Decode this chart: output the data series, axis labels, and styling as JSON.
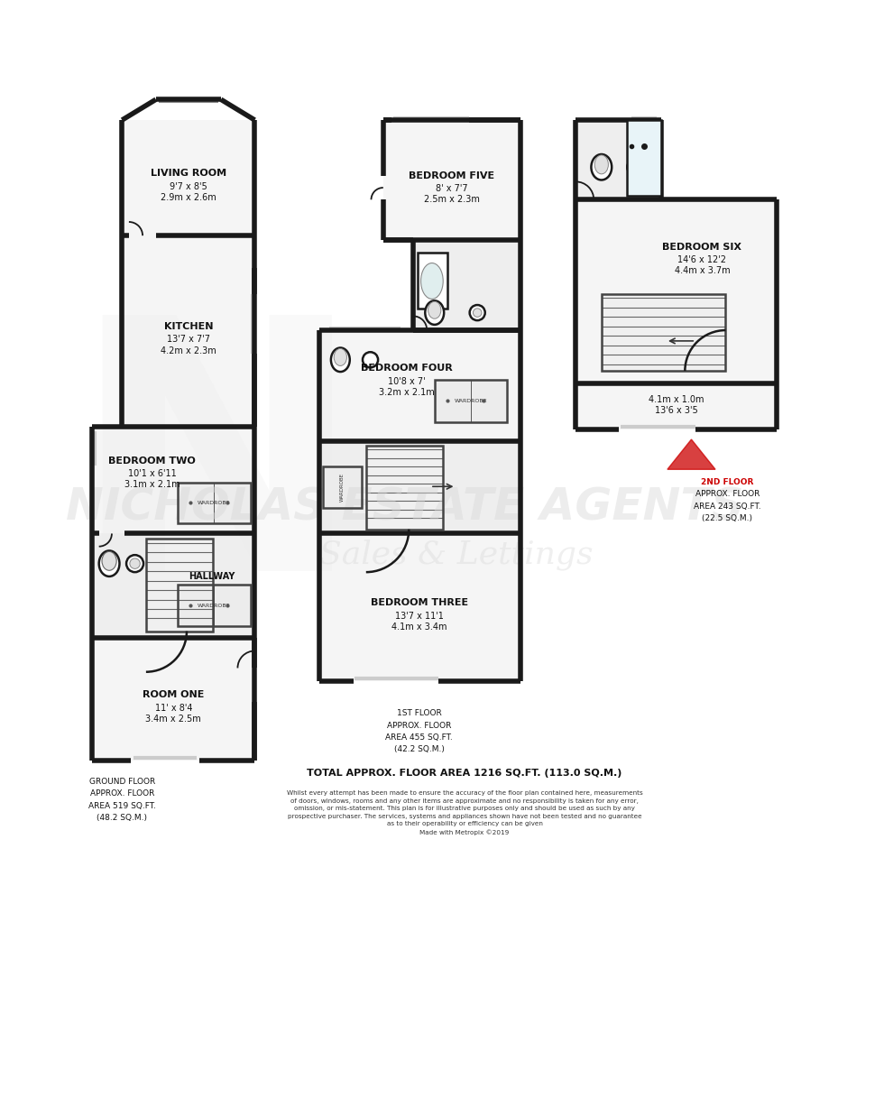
{
  "bg_color": "#ffffff",
  "wall_color": "#1a1a1a",
  "wall_lw": 4.0,
  "thin_lw": 1.0,
  "med_lw": 1.8,
  "rooms": {
    "living_room": {
      "label": "LIVING ROOM",
      "dim1": "9'7 x 8'5",
      "dim2": "2.9m x 2.6m"
    },
    "kitchen": {
      "label": "KITCHEN",
      "dim1": "13'7 x 7'7",
      "dim2": "4.2m x 2.3m"
    },
    "bedroom_two": {
      "label": "BEDROOM TWO",
      "dim1": "10'1 x 6'11",
      "dim2": "3.1m x 2.1m"
    },
    "hallway": {
      "label": "HALLWAY"
    },
    "room_one": {
      "label": "ROOM ONE",
      "dim1": "11' x 8'4",
      "dim2": "3.4m x 2.5m"
    },
    "bedroom_five": {
      "label": "BEDROOM FIVE",
      "dim1": "8' x 7'7",
      "dim2": "2.5m x 2.3m"
    },
    "bedroom_four": {
      "label": "BEDROOM FOUR",
      "dim1": "10'8 x 7'",
      "dim2": "3.2m x 2.1m"
    },
    "bedroom_three": {
      "label": "BEDROOM THREE",
      "dim1": "13'7 x 11'1",
      "dim2": "4.1m x 3.4m"
    },
    "bedroom_six": {
      "label": "BEDROOM SIX",
      "dim1": "14'6 x 12'2",
      "dim2": "4.4m x 3.7m"
    },
    "room_small": {
      "dim1": "13'6 x 3'5",
      "dim2": "4.1m x 1.0m"
    }
  },
  "floor_labels": {
    "ground": [
      "GROUND FLOOR",
      "APPROX. FLOOR",
      "AREA 519 SQ.FT.",
      "(48.2 SQ.M.)"
    ],
    "first": [
      "1ST FLOOR",
      "APPROX. FLOOR",
      "AREA 455 SQ.FT.",
      "(42.2 SQ.M.)"
    ],
    "second": [
      "2ND FLOOR",
      "APPROX. FLOOR",
      "AREA 243 SQ.FT.",
      "(22.5 SQ.M.)"
    ]
  },
  "total_label": "TOTAL APPROX. FLOOR AREA 1216 SQ.FT. (113.0 SQ.M.)",
  "disclaimer": "Whilst every attempt has been made to ensure the accuracy of the floor plan contained here, measurements\nof doors, windows, rooms and any other items are approximate and no responsibility is taken for any error,\nomission, or mis-statement. This plan is for illustrative purposes only and should be used as such by any\nprospective purchaser. The services, systems and appliances shown have not been tested and no guarantee\nas to their operability or efficiency can be given\nMade with Metropix ©2019",
  "arrow_color": "#cc0000",
  "watermark_color": "#d8d8d8"
}
